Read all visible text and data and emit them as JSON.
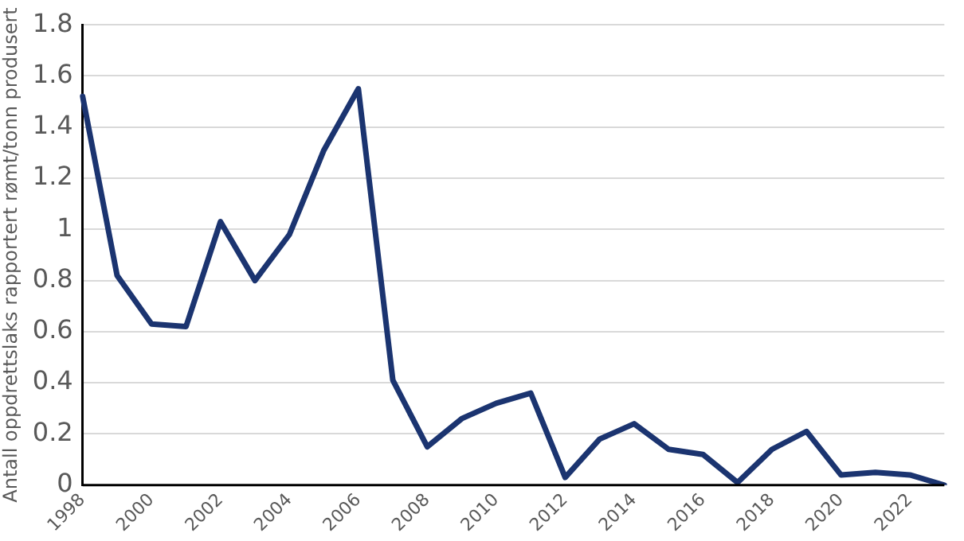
{
  "chart_data": {
    "type": "line",
    "ylabel": "Antall oppdrettslaks rapportert rømt/tonn produsert",
    "categories": [
      "1998",
      null,
      "2000",
      null,
      "2002",
      null,
      "2004",
      null,
      "2006",
      null,
      "2008",
      null,
      "2010",
      null,
      "2012",
      null,
      "2014",
      null,
      "2016",
      null,
      "2018",
      null,
      "2020",
      null,
      "2022",
      null
    ],
    "series": [
      {
        "color": "#1b3470",
        "values": [
          1.52,
          0.82,
          0.63,
          0.62,
          1.03,
          0.8,
          0.98,
          1.31,
          1.55,
          0.41,
          0.15,
          0.26,
          0.32,
          0.36,
          0.03,
          0.18,
          0.24,
          0.14,
          0.12,
          0.01,
          0.14,
          0.21,
          0.04,
          0.05,
          0.04,
          0.0
        ]
      }
    ],
    "ylim": [
      0,
      1.8
    ],
    "yticks": [
      0,
      0.2,
      0.4,
      0.6,
      0.8,
      1,
      1.2,
      1.4,
      1.6,
      1.8
    ],
    "grid": "y",
    "legend": false,
    "marker": "none",
    "line_style": "solid"
  }
}
